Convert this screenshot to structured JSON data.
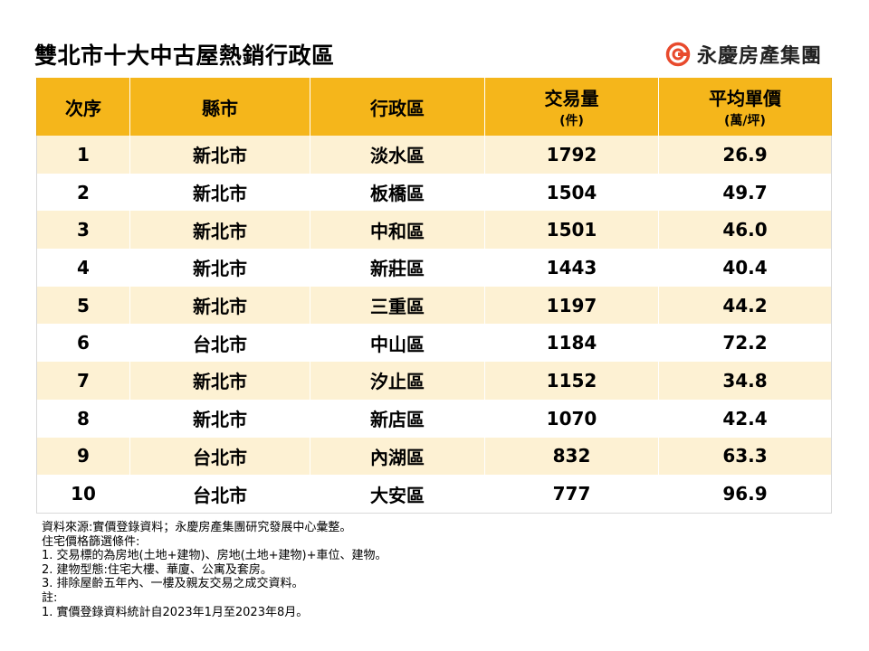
{
  "title": "雙北市十大中古屋熱銷行政區",
  "brand": {
    "name": "永慶房產集團",
    "logo_icon": "yungching-logo-icon",
    "logo_color": "#e84a2d"
  },
  "colors": {
    "header_bg": "#f5b61b",
    "stripe_bg": "#fdf1d3"
  },
  "table": {
    "headers": [
      {
        "label": "次序",
        "unit": ""
      },
      {
        "label": "縣市",
        "unit": ""
      },
      {
        "label": "行政區",
        "unit": ""
      },
      {
        "label": "交易量",
        "unit": "(件)"
      },
      {
        "label": "平均單價",
        "unit": "(萬/坪)"
      }
    ],
    "rows": [
      [
        "1",
        "新北市",
        "淡水區",
        "1792",
        "26.9"
      ],
      [
        "2",
        "新北市",
        "板橋區",
        "1504",
        "49.7"
      ],
      [
        "3",
        "新北市",
        "中和區",
        "1501",
        "46.0"
      ],
      [
        "4",
        "新北市",
        "新莊區",
        "1443",
        "40.4"
      ],
      [
        "5",
        "新北市",
        "三重區",
        "1197",
        "44.2"
      ],
      [
        "6",
        "台北市",
        "中山區",
        "1184",
        "72.2"
      ],
      [
        "7",
        "新北市",
        "汐止區",
        "1152",
        "34.8"
      ],
      [
        "8",
        "新北市",
        "新店區",
        "1070",
        "42.4"
      ],
      [
        "9",
        "台北市",
        "內湖區",
        "832",
        "63.3"
      ],
      [
        "10",
        "台北市",
        "大安區",
        "777",
        "96.9"
      ]
    ]
  },
  "notes": [
    "資料來源:實價登錄資料；永慶房產集團研究發展中心彙整。",
    "住宅價格篩選條件:",
    "1. 交易標的為房地(土地+建物)、房地(土地+建物)+車位、建物。",
    "2. 建物型態:住宅大樓、華廈、公寓及套房。",
    "3. 排除屋齡五年內、一樓及親友交易之成交資料。",
    "註:",
    "1. 實價登錄資料統計自2023年1月至2023年8月。"
  ]
}
